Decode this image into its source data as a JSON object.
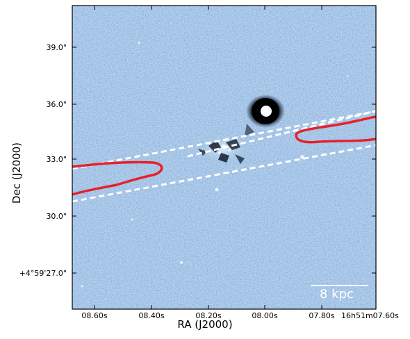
{
  "axes": {
    "xlabel": "RA (J2000)",
    "ylabel": "Dec (J2000)",
    "x_ticks": [
      "08.60s",
      "08.40s",
      "08.20s",
      "08.00s",
      "07.80s",
      "16h51m07.60s"
    ],
    "y_ticks": [
      "39.0\"",
      "36.0\"",
      "33.0\"",
      "30.0\"",
      "+4°59'27.0\""
    ]
  },
  "scalebar": {
    "label": "8 kpc"
  },
  "colors": {
    "background_noise": "#4f6f96",
    "contour": "#e8202a",
    "cone_lines": "#ffffff"
  }
}
